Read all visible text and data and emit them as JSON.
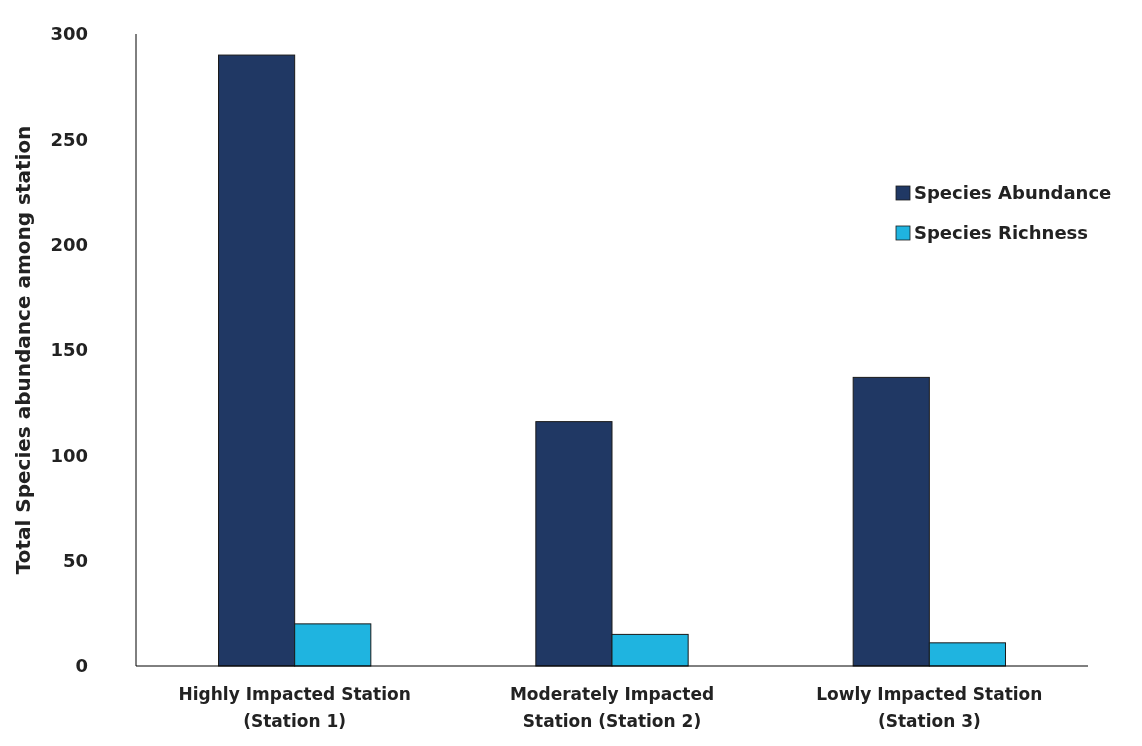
{
  "chart_data": {
    "type": "bar",
    "ylabel": "Total Species abundance among station",
    "categories": [
      "Highly Impacted Station\n(Station 1)",
      "Moderately Impacted\nStation (Station 2)",
      "Lowly Impacted Station\n(Station 3)"
    ],
    "series": [
      {
        "name": "Species Abundance",
        "color": "#203864",
        "values": [
          290,
          116,
          137
        ]
      },
      {
        "name": "Species Richness",
        "color": "#1fb4e0",
        "values": [
          20,
          15,
          11
        ]
      }
    ],
    "ylim": [
      0,
      300
    ],
    "yticks": [
      0,
      50,
      100,
      150,
      200,
      250,
      300
    ],
    "grid": false,
    "legend": "right"
  }
}
